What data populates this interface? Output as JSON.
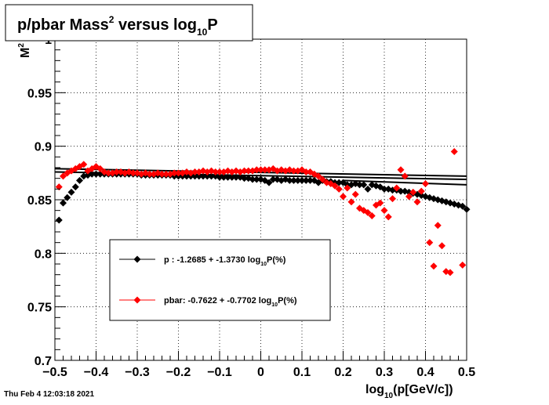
{
  "chart_data": {
    "type": "scatter",
    "title_parts": [
      {
        "text": "p/pbar Mass",
        "sup": "2"
      },
      {
        "text": " versus log",
        "sub": "10"
      },
      {
        "text": "P"
      }
    ],
    "ylabel_parts": [
      {
        "text": "M",
        "sup": "2"
      }
    ],
    "xlabel_parts": [
      {
        "text": "log",
        "sub": "10"
      },
      {
        "text": "(p[GeV/c])"
      }
    ],
    "timestamp": "Thu Feb  4 12:03:18 2021",
    "xlim": [
      -0.5,
      0.5
    ],
    "ylim": [
      0.7,
      1.0
    ],
    "grid": true,
    "x_ticks": [
      -0.5,
      -0.4,
      -0.3,
      -0.2,
      -0.1,
      0,
      0.1,
      0.2,
      0.3,
      0.4,
      0.5
    ],
    "x_tick_labels": [
      "−0.5",
      "−0.4",
      "−0.3",
      "−0.2",
      "−0.1",
      "0",
      "0.1",
      "0.2",
      "0.3",
      "0.4",
      "0.5"
    ],
    "y_ticks": [
      0.7,
      0.75,
      0.8,
      0.85,
      0.9,
      0.95,
      1.0
    ],
    "y_tick_labels": [
      "0.7",
      "0.75",
      "0.8",
      "0.85",
      "0.9",
      "0.95",
      "1"
    ],
    "legend_position": "bottom-left",
    "legend": [
      {
        "series": "p",
        "parts": [
          {
            "text": "p   : -1.2685 + -1.3730 log",
            "sub": "10"
          },
          {
            "text": "P(%)"
          }
        ]
      },
      {
        "series": "pbar",
        "parts": [
          {
            "text": "pbar: -0.7622 + -0.7702 log",
            "sub": "10"
          },
          {
            "text": "P(%)"
          }
        ]
      }
    ],
    "series": [
      {
        "key": "p",
        "color": "#000000",
        "marker": "diamond",
        "fit_lines": [
          {
            "x": [
              -0.5,
              0.5
            ],
            "y": [
              0.876,
              0.869
            ]
          },
          {
            "x": [
              -0.5,
              0.5
            ],
            "y": [
              0.879,
              0.872
            ]
          },
          {
            "x": [
              0.2,
              0.5
            ],
            "y": [
              0.868,
              0.864
            ]
          }
        ],
        "points": [
          {
            "x": -0.49,
            "y": 0.831
          },
          {
            "x": -0.48,
            "y": 0.847
          },
          {
            "x": -0.47,
            "y": 0.852
          },
          {
            "x": -0.46,
            "y": 0.857
          },
          {
            "x": -0.45,
            "y": 0.862
          },
          {
            "x": -0.44,
            "y": 0.868
          },
          {
            "x": -0.43,
            "y": 0.872
          },
          {
            "x": -0.42,
            "y": 0.873
          },
          {
            "x": -0.41,
            "y": 0.874
          },
          {
            "x": -0.4,
            "y": 0.874
          },
          {
            "x": -0.39,
            "y": 0.874
          },
          {
            "x": -0.38,
            "y": 0.874
          },
          {
            "x": -0.37,
            "y": 0.874
          },
          {
            "x": -0.36,
            "y": 0.874
          },
          {
            "x": -0.35,
            "y": 0.874
          },
          {
            "x": -0.34,
            "y": 0.874
          },
          {
            "x": -0.33,
            "y": 0.874
          },
          {
            "x": -0.32,
            "y": 0.874
          },
          {
            "x": -0.31,
            "y": 0.874
          },
          {
            "x": -0.3,
            "y": 0.874
          },
          {
            "x": -0.29,
            "y": 0.873
          },
          {
            "x": -0.28,
            "y": 0.873
          },
          {
            "x": -0.27,
            "y": 0.873
          },
          {
            "x": -0.26,
            "y": 0.873
          },
          {
            "x": -0.25,
            "y": 0.873
          },
          {
            "x": -0.24,
            "y": 0.873
          },
          {
            "x": -0.23,
            "y": 0.873
          },
          {
            "x": -0.22,
            "y": 0.873
          },
          {
            "x": -0.21,
            "y": 0.872
          },
          {
            "x": -0.2,
            "y": 0.872
          },
          {
            "x": -0.19,
            "y": 0.872
          },
          {
            "x": -0.18,
            "y": 0.872
          },
          {
            "x": -0.17,
            "y": 0.872
          },
          {
            "x": -0.16,
            "y": 0.872
          },
          {
            "x": -0.15,
            "y": 0.872
          },
          {
            "x": -0.14,
            "y": 0.872
          },
          {
            "x": -0.13,
            "y": 0.872
          },
          {
            "x": -0.12,
            "y": 0.872
          },
          {
            "x": -0.11,
            "y": 0.872
          },
          {
            "x": -0.1,
            "y": 0.871
          },
          {
            "x": -0.09,
            "y": 0.871
          },
          {
            "x": -0.08,
            "y": 0.871
          },
          {
            "x": -0.07,
            "y": 0.871
          },
          {
            "x": -0.06,
            "y": 0.871
          },
          {
            "x": -0.05,
            "y": 0.871
          },
          {
            "x": -0.04,
            "y": 0.87
          },
          {
            "x": -0.03,
            "y": 0.87
          },
          {
            "x": -0.02,
            "y": 0.869
          },
          {
            "x": -0.01,
            "y": 0.869
          },
          {
            "x": 0.0,
            "y": 0.869
          },
          {
            "x": 0.01,
            "y": 0.868
          },
          {
            "x": 0.02,
            "y": 0.866
          },
          {
            "x": 0.03,
            "y": 0.869
          },
          {
            "x": 0.04,
            "y": 0.869
          },
          {
            "x": 0.05,
            "y": 0.868
          },
          {
            "x": 0.06,
            "y": 0.869
          },
          {
            "x": 0.07,
            "y": 0.868
          },
          {
            "x": 0.08,
            "y": 0.868
          },
          {
            "x": 0.09,
            "y": 0.868
          },
          {
            "x": 0.1,
            "y": 0.868
          },
          {
            "x": 0.11,
            "y": 0.868
          },
          {
            "x": 0.12,
            "y": 0.868
          },
          {
            "x": 0.13,
            "y": 0.868
          },
          {
            "x": 0.14,
            "y": 0.866
          },
          {
            "x": 0.15,
            "y": 0.868
          },
          {
            "x": 0.16,
            "y": 0.867
          },
          {
            "x": 0.17,
            "y": 0.867
          },
          {
            "x": 0.18,
            "y": 0.866
          },
          {
            "x": 0.19,
            "y": 0.866
          },
          {
            "x": 0.2,
            "y": 0.866
          },
          {
            "x": 0.21,
            "y": 0.864
          },
          {
            "x": 0.22,
            "y": 0.864
          },
          {
            "x": 0.23,
            "y": 0.865
          },
          {
            "x": 0.24,
            "y": 0.864
          },
          {
            "x": 0.25,
            "y": 0.864
          },
          {
            "x": 0.26,
            "y": 0.86
          },
          {
            "x": 0.27,
            "y": 0.864
          },
          {
            "x": 0.28,
            "y": 0.863
          },
          {
            "x": 0.29,
            "y": 0.862
          },
          {
            "x": 0.3,
            "y": 0.86
          },
          {
            "x": 0.31,
            "y": 0.86
          },
          {
            "x": 0.32,
            "y": 0.859
          },
          {
            "x": 0.33,
            "y": 0.859
          },
          {
            "x": 0.34,
            "y": 0.858
          },
          {
            "x": 0.35,
            "y": 0.858
          },
          {
            "x": 0.36,
            "y": 0.857
          },
          {
            "x": 0.37,
            "y": 0.856
          },
          {
            "x": 0.38,
            "y": 0.855
          },
          {
            "x": 0.39,
            "y": 0.854
          },
          {
            "x": 0.4,
            "y": 0.853
          },
          {
            "x": 0.41,
            "y": 0.852
          },
          {
            "x": 0.42,
            "y": 0.851
          },
          {
            "x": 0.43,
            "y": 0.85
          },
          {
            "x": 0.44,
            "y": 0.849
          },
          {
            "x": 0.45,
            "y": 0.848
          },
          {
            "x": 0.46,
            "y": 0.847
          },
          {
            "x": 0.47,
            "y": 0.846
          },
          {
            "x": 0.48,
            "y": 0.845
          },
          {
            "x": 0.49,
            "y": 0.844
          },
          {
            "x": 0.5,
            "y": 0.841
          }
        ]
      },
      {
        "key": "pbar",
        "color": "#ff0000",
        "marker": "diamond",
        "fit_lines": [],
        "points": [
          {
            "x": -0.49,
            "y": 0.862
          },
          {
            "x": -0.48,
            "y": 0.872
          },
          {
            "x": -0.47,
            "y": 0.875
          },
          {
            "x": -0.46,
            "y": 0.877
          },
          {
            "x": -0.45,
            "y": 0.879
          },
          {
            "x": -0.44,
            "y": 0.881
          },
          {
            "x": -0.43,
            "y": 0.883
          },
          {
            "x": -0.42,
            "y": 0.877
          },
          {
            "x": -0.41,
            "y": 0.879
          },
          {
            "x": -0.4,
            "y": 0.881
          },
          {
            "x": -0.39,
            "y": 0.879
          },
          {
            "x": -0.38,
            "y": 0.876
          },
          {
            "x": -0.37,
            "y": 0.875
          },
          {
            "x": -0.36,
            "y": 0.875
          },
          {
            "x": -0.35,
            "y": 0.876
          },
          {
            "x": -0.34,
            "y": 0.876
          },
          {
            "x": -0.33,
            "y": 0.875
          },
          {
            "x": -0.32,
            "y": 0.876
          },
          {
            "x": -0.31,
            "y": 0.875
          },
          {
            "x": -0.3,
            "y": 0.875
          },
          {
            "x": -0.29,
            "y": 0.874
          },
          {
            "x": -0.28,
            "y": 0.875
          },
          {
            "x": -0.27,
            "y": 0.874
          },
          {
            "x": -0.26,
            "y": 0.874
          },
          {
            "x": -0.25,
            "y": 0.875
          },
          {
            "x": -0.24,
            "y": 0.874
          },
          {
            "x": -0.23,
            "y": 0.874
          },
          {
            "x": -0.22,
            "y": 0.874
          },
          {
            "x": -0.21,
            "y": 0.875
          },
          {
            "x": -0.2,
            "y": 0.875
          },
          {
            "x": -0.19,
            "y": 0.875
          },
          {
            "x": -0.18,
            "y": 0.876
          },
          {
            "x": -0.17,
            "y": 0.875
          },
          {
            "x": -0.16,
            "y": 0.876
          },
          {
            "x": -0.15,
            "y": 0.876
          },
          {
            "x": -0.14,
            "y": 0.877
          },
          {
            "x": -0.13,
            "y": 0.876
          },
          {
            "x": -0.12,
            "y": 0.877
          },
          {
            "x": -0.11,
            "y": 0.876
          },
          {
            "x": -0.1,
            "y": 0.876
          },
          {
            "x": -0.09,
            "y": 0.876
          },
          {
            "x": -0.08,
            "y": 0.877
          },
          {
            "x": -0.07,
            "y": 0.876
          },
          {
            "x": -0.06,
            "y": 0.877
          },
          {
            "x": -0.05,
            "y": 0.876
          },
          {
            "x": -0.04,
            "y": 0.877
          },
          {
            "x": -0.03,
            "y": 0.877
          },
          {
            "x": -0.02,
            "y": 0.877
          },
          {
            "x": -0.01,
            "y": 0.878
          },
          {
            "x": 0.0,
            "y": 0.878
          },
          {
            "x": 0.01,
            "y": 0.878
          },
          {
            "x": 0.02,
            "y": 0.878
          },
          {
            "x": 0.03,
            "y": 0.879
          },
          {
            "x": 0.04,
            "y": 0.877
          },
          {
            "x": 0.05,
            "y": 0.878
          },
          {
            "x": 0.06,
            "y": 0.877
          },
          {
            "x": 0.07,
            "y": 0.878
          },
          {
            "x": 0.08,
            "y": 0.877
          },
          {
            "x": 0.09,
            "y": 0.877
          },
          {
            "x": 0.1,
            "y": 0.878
          },
          {
            "x": 0.11,
            "y": 0.876
          },
          {
            "x": 0.12,
            "y": 0.876
          },
          {
            "x": 0.13,
            "y": 0.874
          },
          {
            "x": 0.14,
            "y": 0.872
          },
          {
            "x": 0.15,
            "y": 0.869
          },
          {
            "x": 0.16,
            "y": 0.866
          },
          {
            "x": 0.17,
            "y": 0.865
          },
          {
            "x": 0.18,
            "y": 0.863
          },
          {
            "x": 0.19,
            "y": 0.86
          },
          {
            "x": 0.2,
            "y": 0.853
          },
          {
            "x": 0.21,
            "y": 0.861
          },
          {
            "x": 0.22,
            "y": 0.848
          },
          {
            "x": 0.23,
            "y": 0.855
          },
          {
            "x": 0.24,
            "y": 0.842
          },
          {
            "x": 0.25,
            "y": 0.84
          },
          {
            "x": 0.26,
            "y": 0.838
          },
          {
            "x": 0.27,
            "y": 0.835
          },
          {
            "x": 0.28,
            "y": 0.845
          },
          {
            "x": 0.29,
            "y": 0.847
          },
          {
            "x": 0.3,
            "y": 0.84
          },
          {
            "x": 0.31,
            "y": 0.834
          },
          {
            "x": 0.32,
            "y": 0.851
          },
          {
            "x": 0.33,
            "y": 0.861
          },
          {
            "x": 0.34,
            "y": 0.878
          },
          {
            "x": 0.35,
            "y": 0.872
          },
          {
            "x": 0.36,
            "y": 0.853
          },
          {
            "x": 0.37,
            "y": 0.857
          },
          {
            "x": 0.38,
            "y": 0.848
          },
          {
            "x": 0.39,
            "y": 0.858
          },
          {
            "x": 0.4,
            "y": 0.865
          },
          {
            "x": 0.41,
            "y": 0.81
          },
          {
            "x": 0.42,
            "y": 0.788
          },
          {
            "x": 0.43,
            "y": 0.826
          },
          {
            "x": 0.44,
            "y": 0.807
          },
          {
            "x": 0.45,
            "y": 0.783
          },
          {
            "x": 0.46,
            "y": 0.782
          },
          {
            "x": 0.47,
            "y": 0.895
          },
          {
            "x": 0.49,
            "y": 0.789
          }
        ]
      }
    ]
  }
}
